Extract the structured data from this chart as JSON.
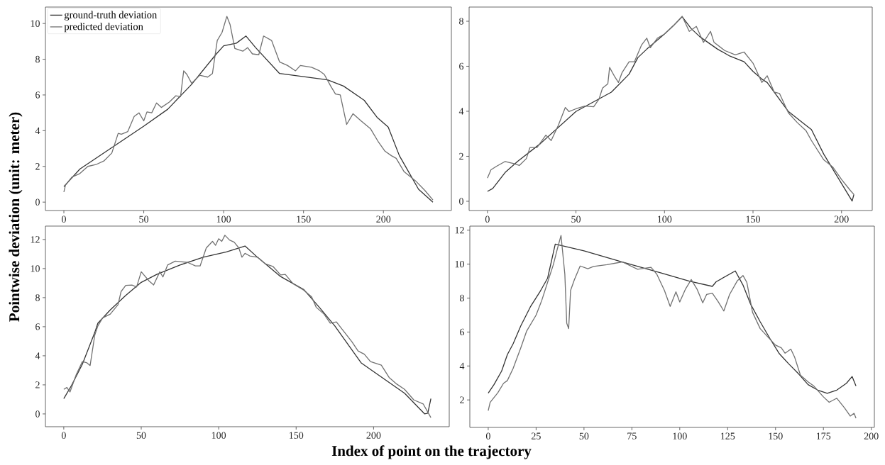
{
  "chart_data": [
    {
      "type": "line",
      "ylabel": "Pointwise deviation (unit: meter)",
      "legend": "top left",
      "xlim": [
        -11.55,
        242.55
      ],
      "ylim": [
        -0.47,
        10.92
      ],
      "xticks": [
        0,
        50,
        100,
        150,
        200
      ],
      "yticks": [
        0,
        2,
        4,
        6,
        8,
        10
      ],
      "series": [
        {
          "name": "ground-truth deviation",
          "color": "#333333",
          "x": [
            0,
            10,
            30,
            50,
            65,
            80,
            95,
            100,
            108,
            114,
            120,
            135,
            165,
            175,
            188,
            196,
            203,
            210,
            222,
            231
          ],
          "values": [
            0.87,
            1.85,
            3.05,
            4.25,
            5.2,
            6.6,
            8.25,
            8.75,
            8.9,
            9.3,
            8.65,
            7.2,
            6.85,
            6.5,
            5.7,
            4.75,
            4.2,
            2.6,
            0.72,
            0.0
          ]
        },
        {
          "name": "predicted deviation",
          "color": "#717171",
          "x": [
            0,
            1,
            5,
            10,
            15,
            20,
            25,
            30,
            34,
            36,
            40,
            44,
            47,
            50,
            52,
            55,
            58,
            61,
            66,
            70,
            73,
            75,
            77,
            80,
            85,
            90,
            93,
            96,
            99,
            102,
            104,
            107,
            112,
            115,
            118,
            122,
            125,
            130,
            135,
            140,
            145,
            148,
            155,
            160,
            163,
            167,
            170,
            173,
            177,
            181,
            186,
            192,
            197,
            201,
            205,
            208,
            213,
            220,
            226,
            231
          ],
          "values": [
            0.57,
            0.95,
            1.4,
            1.6,
            2.0,
            2.1,
            2.3,
            2.75,
            3.85,
            3.8,
            3.95,
            4.8,
            5.0,
            4.55,
            5.05,
            5.0,
            5.55,
            5.3,
            5.6,
            5.95,
            5.9,
            7.35,
            7.15,
            6.65,
            7.1,
            7.0,
            7.2,
            9.05,
            9.5,
            10.4,
            9.95,
            8.6,
            8.45,
            8.65,
            8.3,
            8.25,
            9.3,
            9.05,
            7.85,
            7.65,
            7.35,
            7.65,
            7.55,
            7.35,
            7.15,
            6.5,
            6.05,
            6.0,
            4.35,
            4.95,
            4.55,
            4.1,
            3.35,
            2.85,
            2.6,
            2.45,
            1.7,
            1.2,
            0.65,
            0.12
          ]
        }
      ]
    },
    {
      "type": "line",
      "xlim": [
        -10.35,
        217.35
      ],
      "ylim": [
        -0.41,
        8.63
      ],
      "xticks": [
        0,
        50,
        100,
        150,
        200
      ],
      "yticks": [
        0,
        2,
        4,
        6,
        8
      ],
      "series": [
        {
          "color": "#333333",
          "x": [
            0,
            3,
            10,
            17,
            30,
            50,
            60,
            70,
            80,
            85,
            90,
            100,
            105,
            110,
            115,
            120,
            130,
            137,
            145,
            150,
            155,
            158,
            170,
            180,
            183,
            190,
            200,
            206,
            207
          ],
          "values": [
            0.44,
            0.57,
            1.28,
            1.77,
            2.57,
            3.99,
            4.42,
            4.85,
            5.65,
            6.39,
            6.76,
            7.43,
            7.8,
            8.2,
            7.68,
            7.31,
            6.76,
            6.45,
            6.2,
            5.77,
            5.43,
            5.28,
            3.99,
            3.37,
            3.19,
            2.09,
            0.79,
            0.01,
            0.3
          ]
        },
        {
          "color": "#717171",
          "x": [
            0,
            2,
            5,
            10,
            15,
            18,
            22,
            24,
            28,
            33,
            36,
            40,
            44,
            46,
            50,
            55,
            60,
            63,
            65,
            68,
            69,
            72,
            74,
            76,
            80,
            83,
            87,
            90,
            92,
            96,
            100,
            105,
            110,
            114,
            118,
            122,
            126,
            128,
            134,
            140,
            145,
            150,
            155,
            158,
            162,
            165,
            170,
            175,
            180,
            183,
            190,
            195,
            200,
            205,
            207
          ],
          "values": [
            1.03,
            1.4,
            1.55,
            1.77,
            1.67,
            1.59,
            1.9,
            2.39,
            2.39,
            2.94,
            2.7,
            3.37,
            4.17,
            3.99,
            4.11,
            4.23,
            4.2,
            4.54,
            5.03,
            5.22,
            5.95,
            5.52,
            5.28,
            5.71,
            6.2,
            6.2,
            6.94,
            7.25,
            6.82,
            7.25,
            7.43,
            7.8,
            8.22,
            7.55,
            7.77,
            7.06,
            7.55,
            7.06,
            6.7,
            6.51,
            6.63,
            6.14,
            5.28,
            5.58,
            4.85,
            4.79,
            3.93,
            3.5,
            3.13,
            2.7,
            1.84,
            1.53,
            0.97,
            0.48,
            0.3
          ]
        }
      ]
    },
    {
      "type": "line",
      "xlabel": "Index of point on the trajectory",
      "xlim": [
        -11.85,
        248.85
      ],
      "ylim": [
        -0.88,
        12.92
      ],
      "xticks": [
        0,
        50,
        100,
        150,
        200
      ],
      "yticks": [
        0,
        2,
        4,
        6,
        8,
        10,
        12
      ],
      "series": [
        {
          "color": "#333333",
          "x": [
            0,
            5,
            12,
            20,
            22,
            30,
            40,
            50,
            60,
            75,
            90,
            105,
            117,
            125,
            140,
            155,
            165,
            175,
            192,
            200,
            220,
            233,
            235,
            237
          ],
          "values": [
            1.05,
            1.96,
            3.42,
            5.6,
            6.24,
            7.15,
            8.15,
            9.05,
            9.6,
            10.24,
            10.78,
            11.15,
            11.55,
            10.78,
            9.45,
            8.55,
            7.33,
            6.05,
            3.51,
            2.91,
            1.42,
            0.0,
            0.05,
            1.05
          ]
        },
        {
          "color": "#717171",
          "x": [
            0,
            2,
            4,
            8,
            12,
            15,
            17,
            20,
            22,
            25,
            30,
            35,
            37,
            40,
            44,
            47,
            50,
            55,
            58,
            62,
            64,
            67,
            72,
            80,
            85,
            88,
            92,
            96,
            98,
            100,
            102,
            104,
            107,
            110,
            113,
            115,
            117,
            120,
            125,
            130,
            135,
            140,
            143,
            148,
            155,
            160,
            163,
            168,
            172,
            176,
            180,
            186,
            190,
            194,
            198,
            205,
            210,
            215,
            220,
            226,
            232,
            237
          ],
          "values": [
            1.69,
            1.82,
            1.51,
            2.69,
            3.6,
            3.51,
            3.33,
            5.42,
            6.05,
            6.6,
            6.87,
            7.51,
            8.42,
            8.84,
            8.87,
            8.73,
            9.78,
            9.15,
            8.87,
            9.78,
            9.42,
            10.24,
            10.51,
            10.42,
            10.18,
            10.18,
            11.42,
            11.87,
            11.6,
            12.05,
            11.87,
            12.29,
            11.96,
            11.82,
            11.42,
            10.78,
            11.05,
            10.87,
            10.78,
            10.33,
            10.15,
            9.56,
            9.6,
            8.96,
            8.51,
            8.05,
            7.33,
            6.87,
            6.24,
            6.33,
            5.78,
            4.96,
            4.33,
            4.11,
            3.6,
            3.36,
            2.51,
            2.05,
            1.69,
            0.96,
            0.69,
            -0.25
          ]
        }
      ]
    },
    {
      "type": "line",
      "xlim": [
        -9.6,
        201.6
      ],
      "ylim": [
        0.38,
        12.24
      ],
      "xticks": [
        0,
        25,
        50,
        75,
        100,
        125,
        150,
        175,
        200
      ],
      "yticks": [
        2,
        4,
        6,
        8,
        10,
        12
      ],
      "series": [
        {
          "color": "#333333",
          "x": [
            0,
            3,
            7,
            10,
            13,
            17,
            22,
            27,
            31,
            35,
            50,
            70,
            90,
            105,
            117,
            119,
            129,
            133,
            137,
            142,
            147,
            152,
            157,
            162,
            167,
            172,
            177,
            182,
            187,
            190,
            192
          ],
          "values": [
            2.4,
            2.9,
            3.7,
            4.67,
            5.31,
            6.36,
            7.48,
            8.37,
            9.17,
            11.18,
            10.78,
            10.13,
            9.49,
            9.0,
            8.69,
            8.96,
            9.6,
            8.77,
            7.64,
            6.6,
            5.63,
            4.72,
            4.11,
            3.54,
            2.9,
            2.58,
            2.39,
            2.58,
            2.98,
            3.38,
            2.82
          ]
        },
        {
          "color": "#717171",
          "x": [
            0,
            1,
            5,
            8,
            10,
            13,
            17,
            20,
            25,
            28,
            31,
            34,
            36,
            38,
            40,
            41,
            42,
            43,
            45,
            48,
            52,
            55,
            62,
            70,
            78,
            85,
            88,
            92,
            95,
            98,
            100,
            103,
            106,
            109,
            112,
            114,
            117,
            120,
            123,
            126,
            130,
            133,
            135,
            138,
            142,
            146,
            150,
            153,
            155,
            158,
            160,
            163,
            167,
            170,
            175,
            178,
            182,
            186,
            189,
            191,
            192
          ],
          "values": [
            1.37,
            1.86,
            2.42,
            2.98,
            3.14,
            3.86,
            5.07,
            6.04,
            7.0,
            7.88,
            8.93,
            9.97,
            10.86,
            11.69,
            9.41,
            6.52,
            6.2,
            8.45,
            9.09,
            9.89,
            9.73,
            9.86,
            9.97,
            10.13,
            9.7,
            9.81,
            9.41,
            8.45,
            7.51,
            8.37,
            7.77,
            8.53,
            9.09,
            8.53,
            7.72,
            8.21,
            8.29,
            7.8,
            7.24,
            8.21,
            9.01,
            9.33,
            8.93,
            7.16,
            6.2,
            5.71,
            5.23,
            5.07,
            4.75,
            4.99,
            4.51,
            3.46,
            3.06,
            2.82,
            2.18,
            1.86,
            2.1,
            1.53,
            1.05,
            1.21,
            0.92
          ]
        }
      ]
    }
  ]
}
